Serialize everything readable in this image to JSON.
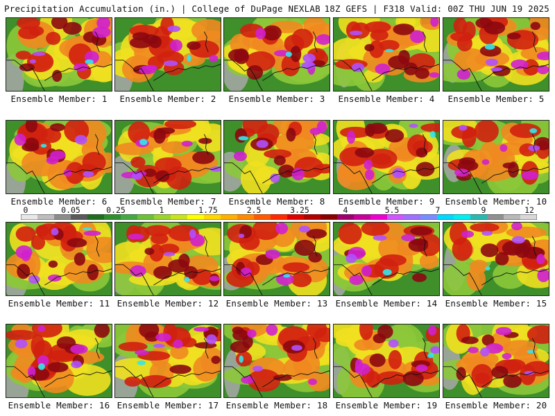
{
  "header": {
    "title": "Precipitation Accumulation (in.) | College of DuPage NEXLAB",
    "run_info": "18Z GEFS | F318 Valid: 00Z THU JUN 19 2025"
  },
  "colorbar": {
    "labels": [
      "0",
      "0.05",
      "0.25",
      "1",
      "1.75",
      "2.5",
      "3.25",
      "4",
      "5.5",
      "7",
      "9",
      "12"
    ],
    "colors": [
      "#e8e8e8",
      "#bdbdbd",
      "#8c8c8c",
      "#5a5a5a",
      "#1f6e1f",
      "#2f8f2f",
      "#45a845",
      "#6dc03a",
      "#9ad42c",
      "#c8e41e",
      "#ffff00",
      "#ffd800",
      "#ffb000",
      "#ff8a00",
      "#ff5a00",
      "#ff2a00",
      "#e00000",
      "#b40000",
      "#8c0000",
      "#a0006e",
      "#c8009b",
      "#ee00d0",
      "#d056ff",
      "#a070ff",
      "#7a8cff",
      "#00d8ff",
      "#00f0f0",
      "#2ab8b0",
      "#909090",
      "#b8b8b8",
      "#d8d8d8"
    ]
  },
  "members": [
    {
      "label": "Ensemble Member: 1"
    },
    {
      "label": "Ensemble Member: 2"
    },
    {
      "label": "Ensemble Member: 3"
    },
    {
      "label": "Ensemble Member: 4"
    },
    {
      "label": "Ensemble Member: 5"
    },
    {
      "label": "Ensemble Member: 6"
    },
    {
      "label": "Ensemble Member: 7"
    },
    {
      "label": "Ensemble Member: 8"
    },
    {
      "label": "Ensemble Member: 9"
    },
    {
      "label": "Ensemble Member: 10"
    },
    {
      "label": "Ensemble Member: 11"
    },
    {
      "label": "Ensemble Member: 12"
    },
    {
      "label": "Ensemble Member: 13"
    },
    {
      "label": "Ensemble Member: 14"
    },
    {
      "label": "Ensemble Member: 15"
    },
    {
      "label": "Ensemble Member: 16"
    },
    {
      "label": "Ensemble Member: 17"
    },
    {
      "label": "Ensemble Member: 18"
    },
    {
      "label": "Ensemble Member: 19"
    },
    {
      "label": "Ensemble Member: 20"
    }
  ],
  "palette": {
    "background": "#ffffff",
    "green": "#3f8f2a",
    "light_green": "#8cc83a",
    "yellow": "#f0e020",
    "orange": "#f08a20",
    "red": "#d02010",
    "dark_red": "#8c0810",
    "magenta": "#d020d0",
    "purple": "#b050ff",
    "cyan": "#30e8f0",
    "gray": "#a8a8a8"
  }
}
